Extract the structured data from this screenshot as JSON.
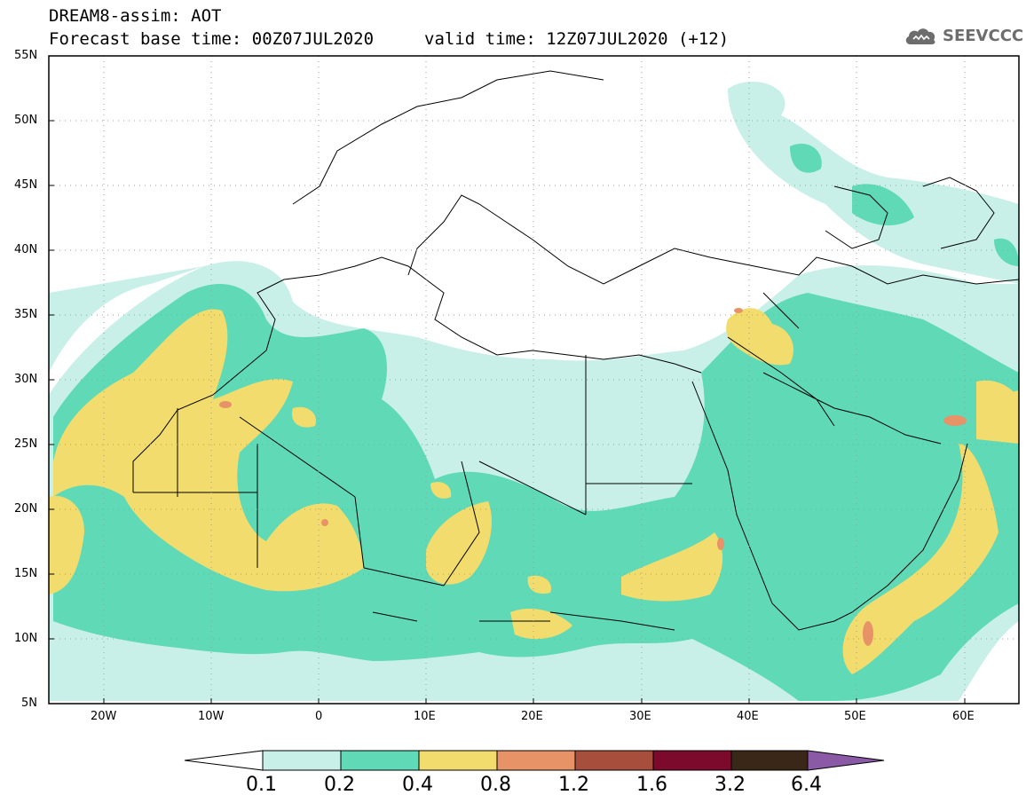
{
  "title": {
    "line1": "DREAM8-assim: AOT",
    "base_time": "Forecast base time: 00Z07JUL2020",
    "valid_time": "valid time: 12Z07JUL2020 (+12)"
  },
  "logo": {
    "text": "SEEVCCC",
    "icon": "cloud-icon"
  },
  "axes": {
    "lat_ticks": [
      "55N",
      "50N",
      "45N",
      "40N",
      "35N",
      "30N",
      "25N",
      "20N",
      "15N",
      "10N",
      "5N"
    ],
    "lon_ticks": [
      "20W",
      "10W",
      "0",
      "10E",
      "20E",
      "30E",
      "40E",
      "50E",
      "60E"
    ]
  },
  "colorbar": {
    "labels": [
      "0.1",
      "0.2",
      "0.4",
      "0.8",
      "1.2",
      "1.6",
      "3.2",
      "6.4"
    ],
    "colors": [
      "#ffffff",
      "#c8f0e8",
      "#5fd9b6",
      "#f2dc6e",
      "#e89268",
      "#a84e3c",
      "#7c0a2c",
      "#3a2718",
      "#8a5aa6"
    ]
  },
  "map_colors": {
    "level1": "#c8f0e8",
    "level2": "#5fd9b6",
    "level3": "#f2dc6e",
    "level4": "#e89268",
    "frame": "#000000",
    "grid": "#9e9e9e"
  }
}
